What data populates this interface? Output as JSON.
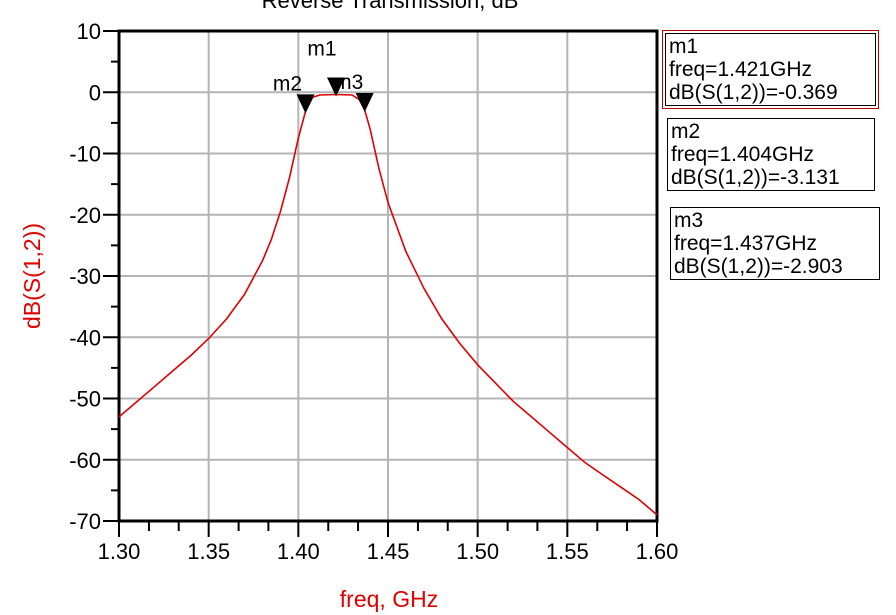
{
  "chart_data": {
    "type": "line",
    "title": "Reverse Transmission, dB",
    "xlabel": "freq, GHz",
    "ylabel": "dB(S(1,2))",
    "xlim": [
      1.3,
      1.6
    ],
    "ylim": [
      -70,
      10
    ],
    "xticks": [
      "1.30",
      "1.35",
      "1.40",
      "1.45",
      "1.50",
      "1.55",
      "1.60"
    ],
    "yticks": [
      "10",
      "0",
      "-10",
      "-20",
      "-30",
      "-40",
      "-50",
      "-60",
      "-70"
    ],
    "grid": true,
    "series": [
      {
        "name": "dB(S(1,2))",
        "color": "#e00000",
        "x": [
          1.3,
          1.31,
          1.32,
          1.33,
          1.34,
          1.35,
          1.36,
          1.37,
          1.38,
          1.385,
          1.39,
          1.395,
          1.4,
          1.404,
          1.408,
          1.412,
          1.421,
          1.43,
          1.434,
          1.437,
          1.44,
          1.445,
          1.45,
          1.46,
          1.47,
          1.48,
          1.49,
          1.5,
          1.51,
          1.52,
          1.53,
          1.54,
          1.55,
          1.56,
          1.57,
          1.58,
          1.59,
          1.6
        ],
        "y": [
          -53,
          -50.5,
          -48,
          -45.5,
          -43,
          -40.2,
          -37,
          -33,
          -27.5,
          -24,
          -19.5,
          -14,
          -7.5,
          -3.131,
          -0.8,
          -0.45,
          -0.369,
          -0.45,
          -1.2,
          -2.903,
          -6,
          -12.5,
          -18,
          -26,
          -32,
          -37,
          -41,
          -44.5,
          -47.5,
          -50.5,
          -53,
          -55.5,
          -58,
          -60.5,
          -62.5,
          -64.5,
          -66.5,
          -69
        ]
      }
    ],
    "markers": [
      {
        "name": "m1",
        "freq": 1.421,
        "value": -0.369,
        "line1": "m1",
        "line2": "freq=1.421GHz",
        "line3": "dB(S(1,2))=-0.369"
      },
      {
        "name": "m2",
        "freq": 1.404,
        "value": -3.131,
        "line1": "m2",
        "line2": "freq=1.404GHz",
        "line3": "dB(S(1,2))=-3.131"
      },
      {
        "name": "m3",
        "freq": 1.437,
        "value": -2.903,
        "line1": "m3",
        "line2": "freq=1.437GHz",
        "line3": "dB(S(1,2))=-2.903"
      }
    ]
  }
}
